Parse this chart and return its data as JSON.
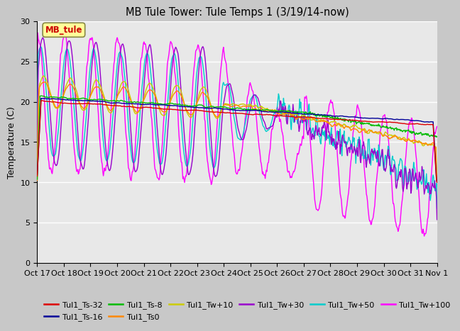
{
  "title": "MB Tule Tower: Tule Temps 1 (3/19/14-now)",
  "ylabel": "Temperature (C)",
  "ylim": [
    0,
    30
  ],
  "yticks": [
    0,
    5,
    10,
    15,
    20,
    25,
    30
  ],
  "fig_bg_color": "#c8c8c8",
  "plot_bg_color": "#e8e8e8",
  "annotation_label": "MB_tule",
  "annotation_color": "#cc0000",
  "annotation_bg": "#ffff99",
  "annotation_edge": "#888844",
  "legend": [
    {
      "label": "Tul1_Ts-32",
      "color": "#dd0000"
    },
    {
      "label": "Tul1_Ts-16",
      "color": "#000099"
    },
    {
      "label": "Tul1_Ts-8",
      "color": "#00bb00"
    },
    {
      "label": "Tul1_Ts0",
      "color": "#ff8800"
    },
    {
      "label": "Tul1_Tw+10",
      "color": "#cccc00"
    },
    {
      "label": "Tul1_Tw+30",
      "color": "#9900cc"
    },
    {
      "label": "Tul1_Tw+50",
      "color": "#00cccc"
    },
    {
      "label": "Tul1_Tw+100",
      "color": "#ff00ff"
    }
  ],
  "x_tick_labels": [
    "Oct 17",
    "Oct 18",
    "Oct 19",
    "Oct 20",
    "Oct 21",
    "Oct 22",
    "Oct 23",
    "Oct 24",
    "Oct 25",
    "Oct 26",
    "Oct 27",
    "Oct 28",
    "Oct 29",
    "Oct 30",
    "Oct 31",
    "Nov 1"
  ],
  "num_days": 15,
  "pts_per_day": 48
}
